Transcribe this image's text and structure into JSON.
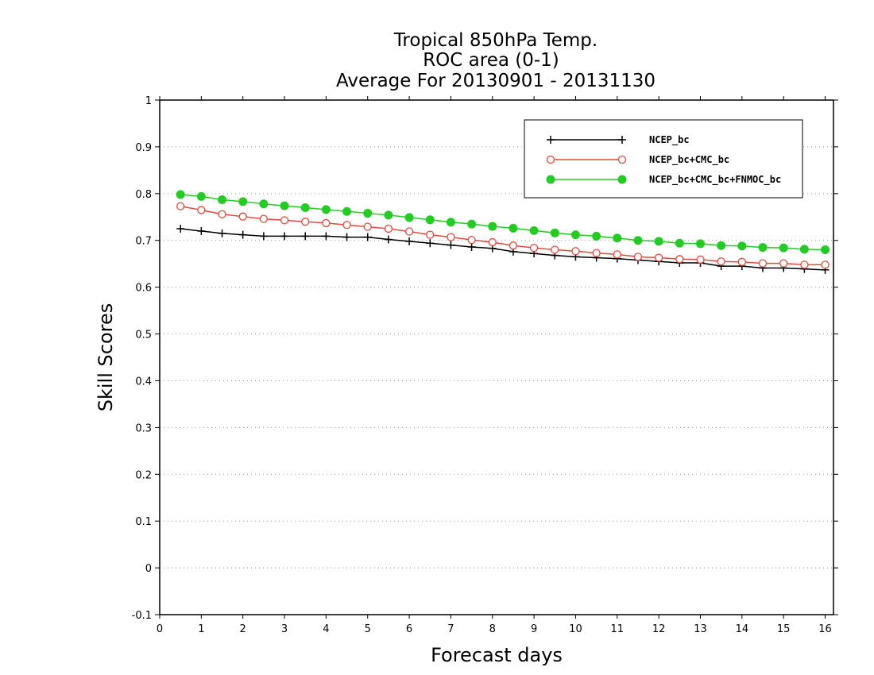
{
  "chart_data": {
    "type": "line",
    "title_lines": [
      "Tropical 850hPa Temp.",
      "ROC area (0-1)",
      "Average For 20130901 - 20131130"
    ],
    "xlabel": "Forecast days",
    "ylabel": "Skill Scores",
    "xlim": [
      0,
      16.2
    ],
    "ylim": [
      -0.1,
      1
    ],
    "x_ticks": [
      "0",
      "1",
      "2",
      "3",
      "4",
      "5",
      "6",
      "7",
      "8",
      "9",
      "10",
      "11",
      "12",
      "13",
      "14",
      "15",
      "16"
    ],
    "y_ticks": [
      "-0.1",
      "0",
      "0.1",
      "0.2",
      "0.3",
      "0.4",
      "0.5",
      "0.6",
      "0.7",
      "0.8",
      "0.9",
      "1"
    ],
    "grid": "horizontal dotted",
    "legend_position": "top-right",
    "x": [
      0.5,
      1,
      1.5,
      2,
      2.5,
      3,
      3.5,
      4,
      4.5,
      5,
      5.5,
      6,
      6.5,
      7,
      7.5,
      8,
      8.5,
      9,
      9.5,
      10,
      10.5,
      11,
      11.5,
      12,
      12.5,
      13,
      13.5,
      14,
      14.5,
      15,
      15.5,
      16
    ],
    "series": [
      {
        "name": "NCEP_bc",
        "color": "#000000",
        "marker": "plus",
        "values": [
          0.725,
          0.72,
          0.715,
          0.712,
          0.709,
          0.709,
          0.709,
          0.709,
          0.707,
          0.707,
          0.702,
          0.698,
          0.694,
          0.69,
          0.686,
          0.683,
          0.676,
          0.672,
          0.668,
          0.665,
          0.663,
          0.661,
          0.658,
          0.655,
          0.652,
          0.652,
          0.645,
          0.645,
          0.641,
          0.641,
          0.639,
          0.637
        ]
      },
      {
        "name": "NCEP_bc+CMC_bc",
        "color": "#e8483a",
        "marker": "open-circle",
        "values": [
          0.773,
          0.765,
          0.756,
          0.751,
          0.746,
          0.743,
          0.74,
          0.737,
          0.733,
          0.729,
          0.725,
          0.719,
          0.712,
          0.707,
          0.701,
          0.696,
          0.689,
          0.684,
          0.68,
          0.677,
          0.673,
          0.67,
          0.665,
          0.663,
          0.66,
          0.659,
          0.655,
          0.654,
          0.651,
          0.651,
          0.648,
          0.648
        ]
      },
      {
        "name": "NCEP_bc+CMC_bc+FNMOC_bc",
        "color": "#22cc22",
        "marker": "filled-circle",
        "values": [
          0.798,
          0.794,
          0.787,
          0.783,
          0.778,
          0.774,
          0.77,
          0.766,
          0.762,
          0.758,
          0.754,
          0.749,
          0.744,
          0.739,
          0.735,
          0.73,
          0.726,
          0.721,
          0.716,
          0.712,
          0.709,
          0.705,
          0.7,
          0.698,
          0.694,
          0.693,
          0.689,
          0.688,
          0.685,
          0.684,
          0.681,
          0.68
        ]
      }
    ]
  }
}
